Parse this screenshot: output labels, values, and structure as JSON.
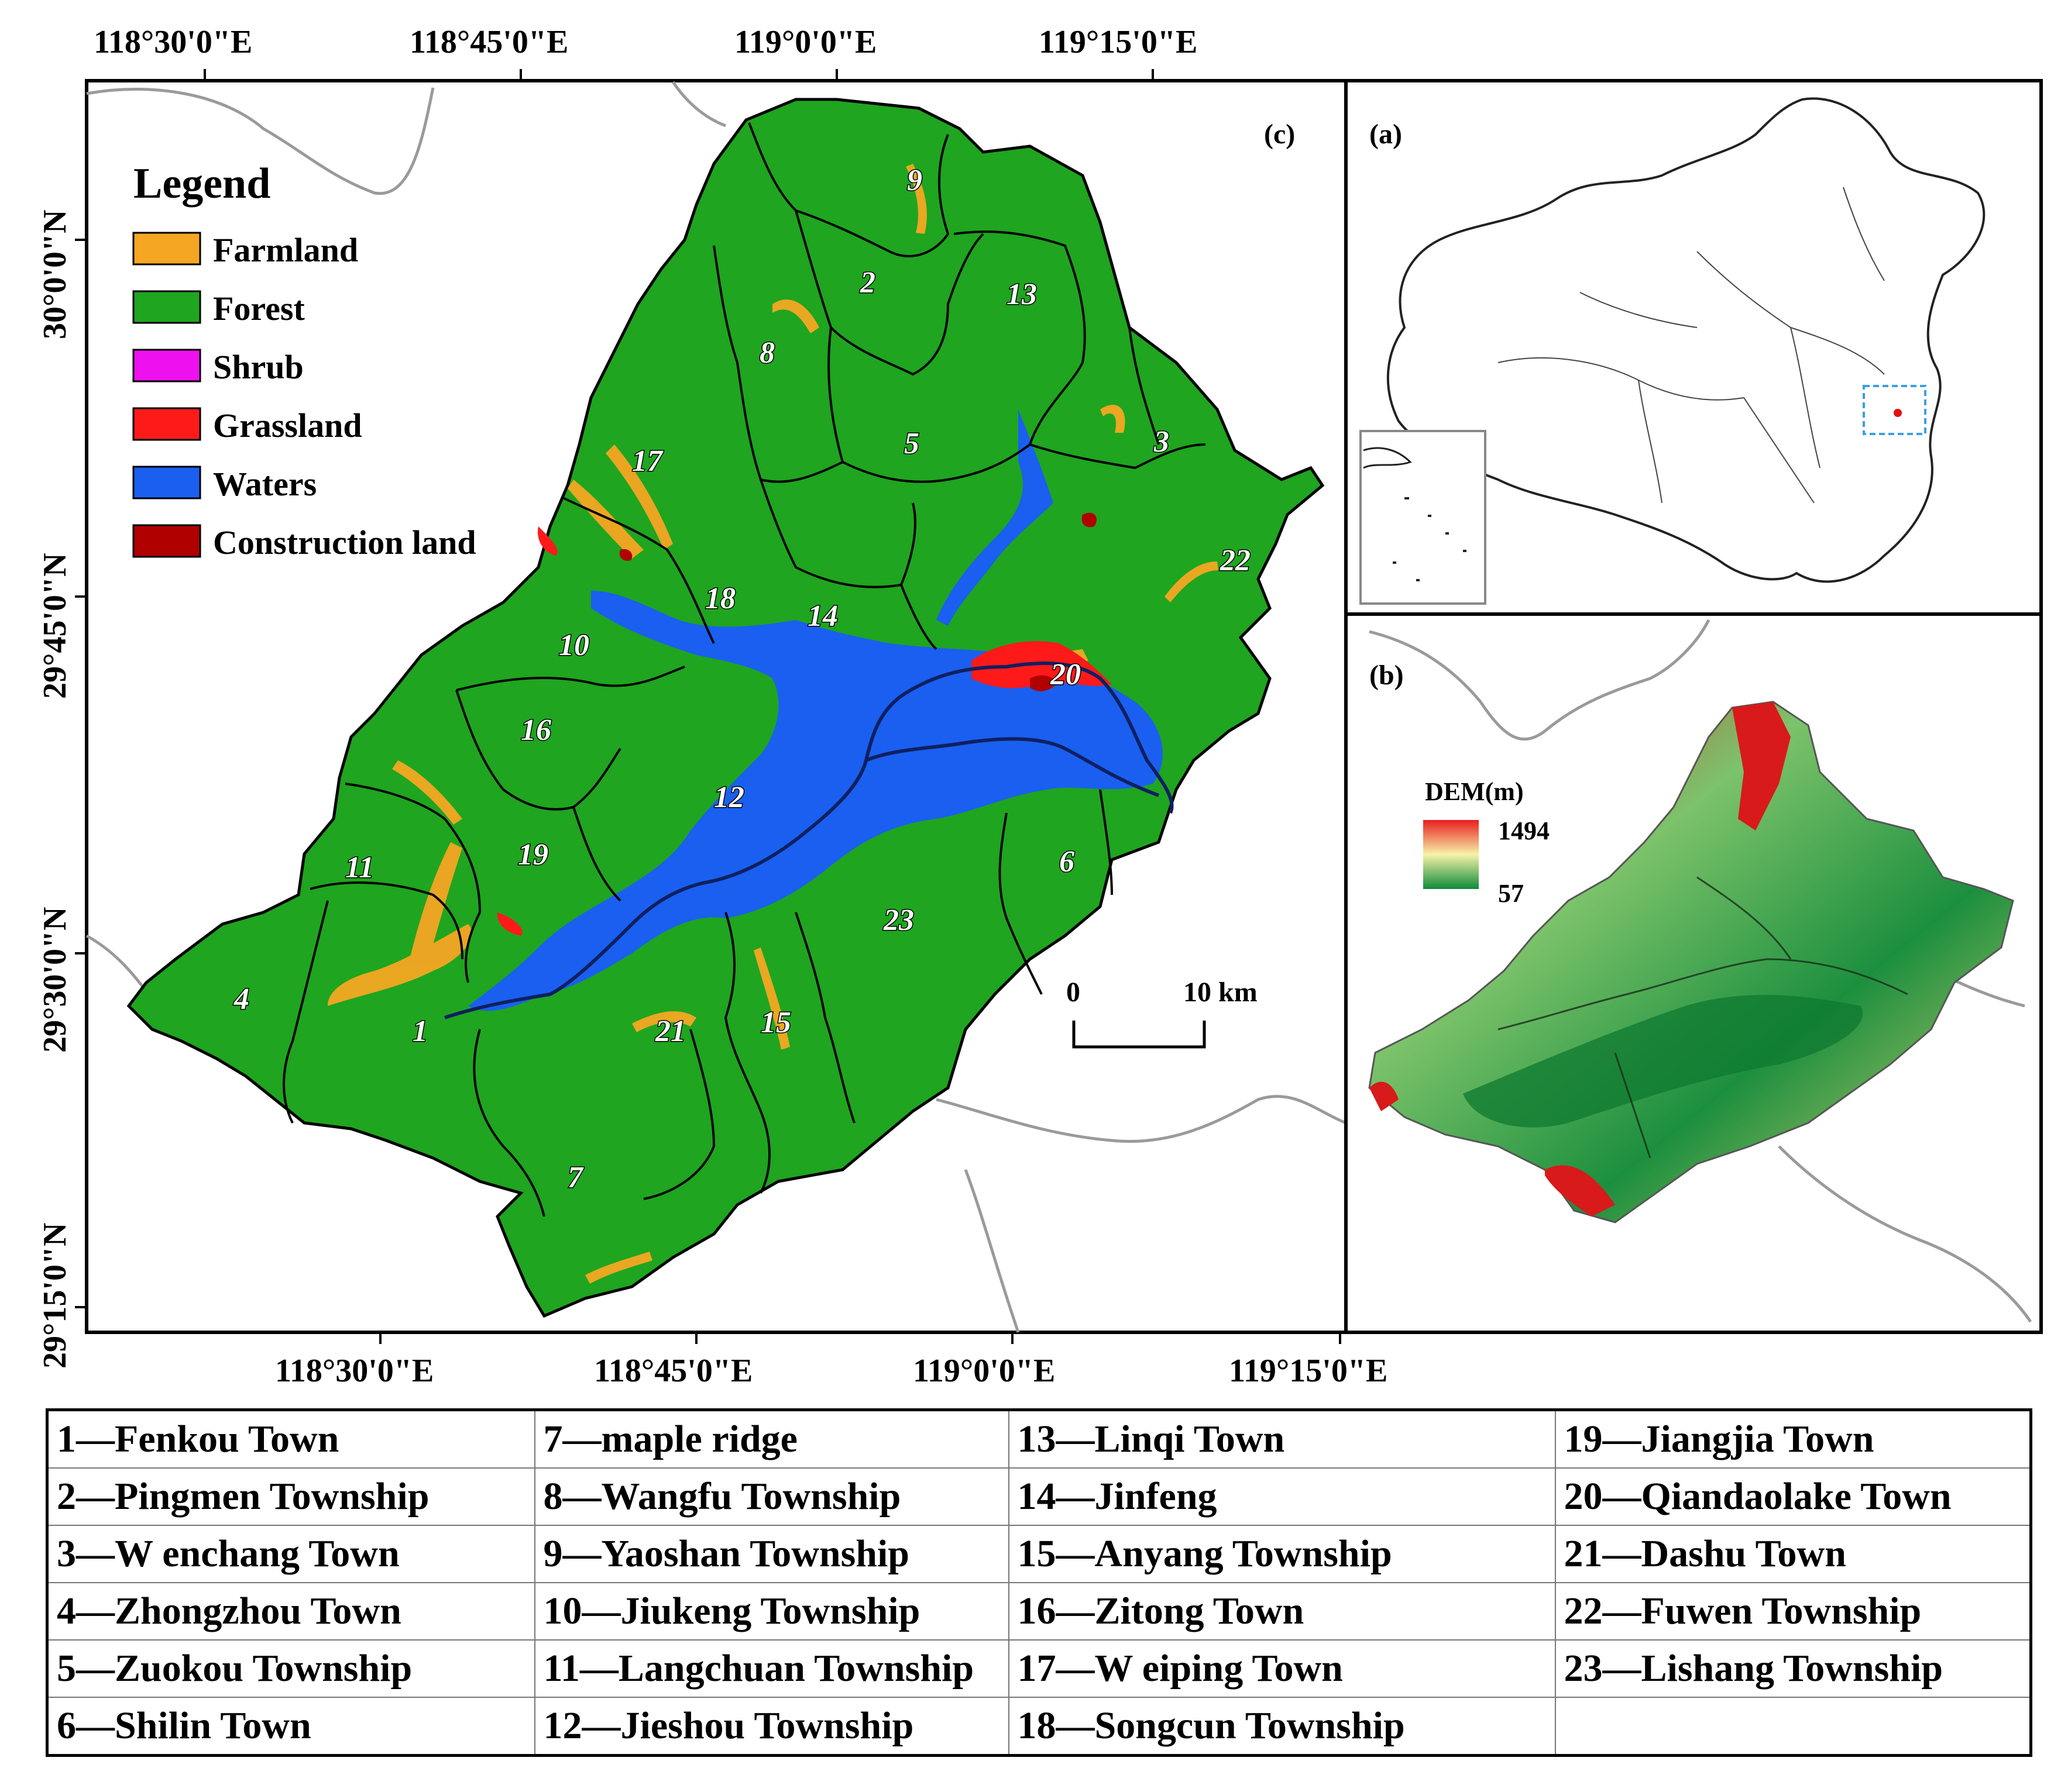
{
  "axis": {
    "top_lon": [
      "118°30'0\"E",
      "118°45'0\"E",
      "119°0'0\"E",
      "119°15'0\"E"
    ],
    "bottom_lon": [
      "118°30'0\"E",
      "118°45'0\"E",
      "119°0'0\"E",
      "119°15'0\"E"
    ],
    "left_lat": [
      "30°0'0\"N",
      "29°45'0\"N",
      "29°30'0\"N",
      "29°15'0\"N"
    ]
  },
  "legend": {
    "title": "Legend",
    "items": [
      {
        "label": "Farmland",
        "color": "#f5a623"
      },
      {
        "label": "Forest",
        "color": "#1fa51f"
      },
      {
        "label": "Shrub",
        "color": "#ee10ee"
      },
      {
        "label": "Grassland",
        "color": "#ff1a1a"
      },
      {
        "label": "Waters",
        "color": "#1a5ff0"
      },
      {
        "label": "Construction land",
        "color": "#b00000"
      }
    ]
  },
  "panels": {
    "a": "(a)",
    "b": "(b)",
    "c": "(c)"
  },
  "scale_bar": {
    "start": "0",
    "end": "10 km"
  },
  "dem": {
    "title": "DEM(m)",
    "max": "1494",
    "min": "57"
  },
  "map_numbers": [
    "1",
    "2",
    "3",
    "4",
    "5",
    "6",
    "7",
    "8",
    "9",
    "10",
    "11",
    "12",
    "13",
    "14",
    "15",
    "16",
    "17",
    "18",
    "19",
    "20",
    "21",
    "22",
    "23"
  ],
  "towns": [
    [
      "1—Fenkou Town",
      "7—maple ridge",
      "13—Linqi Town",
      "19—Jiangjia Town"
    ],
    [
      "2—Pingmen Township",
      "8—Wangfu Township",
      "14—Jinfeng",
      "20—Qiandaolake Town"
    ],
    [
      "3—W enchang Town",
      "9—Yaoshan Township",
      "15—Anyang Township",
      "21—Dashu Town"
    ],
    [
      "4—Zhongzhou Town",
      "10—Jiukeng Township",
      "16—Zitong Town",
      "22—Fuwen Township"
    ],
    [
      "5—Zuokou Township",
      "11—Langchuan Township",
      "17—W eiping Town",
      "23—Lishang Township"
    ],
    [
      "6—Shilin Town",
      "12—Jieshou Township",
      "18—Songcun Township",
      ""
    ]
  ]
}
